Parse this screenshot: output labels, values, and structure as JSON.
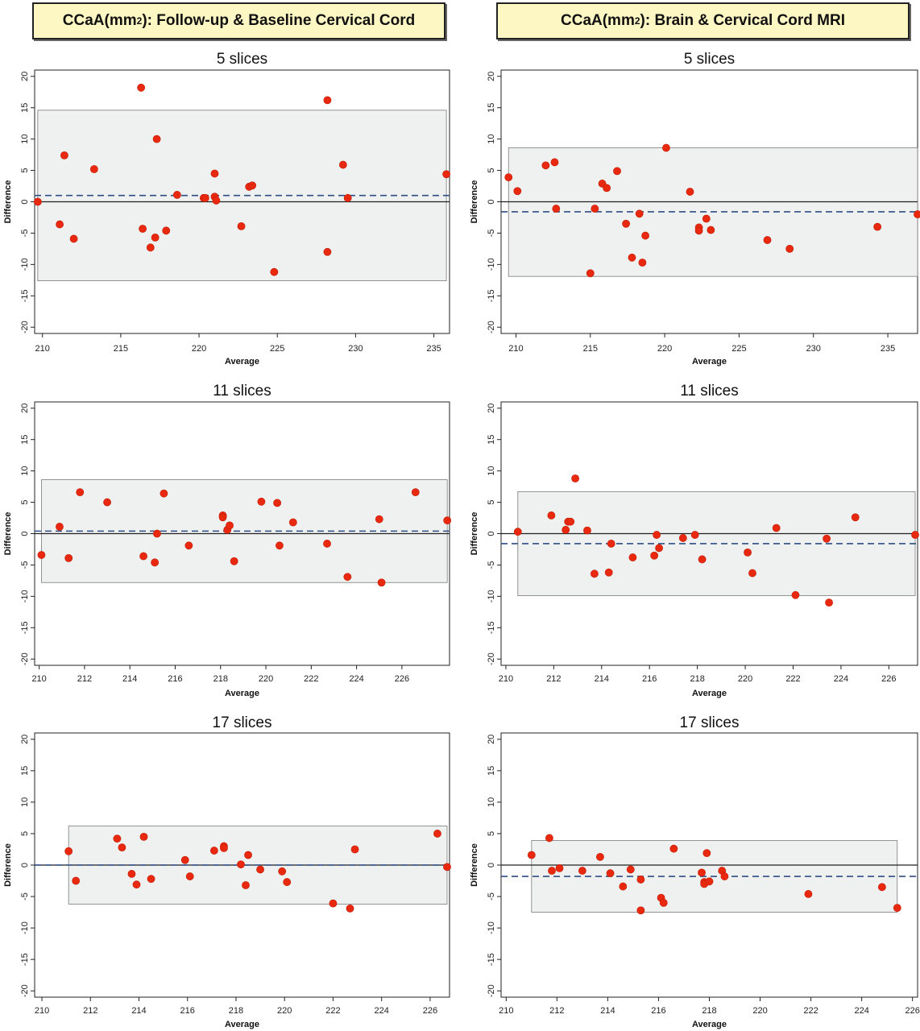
{
  "headers": {
    "left": {
      "prefix": "CCaA(mm",
      "sup": "2",
      "suffix": "): Follow-up & Baseline Cervical Cord"
    },
    "right": {
      "prefix": "CCaA(mm",
      "sup": "2",
      "suffix": "): Brain & Cervical Cord MRI"
    }
  },
  "chart_data": [
    {
      "type": "scatter",
      "title": "5 slices",
      "xlabel": "Average",
      "ylabel": "Difference",
      "xlim": [
        209.5,
        236
      ],
      "ylim": [
        -21,
        21
      ],
      "xticks": [
        210,
        215,
        220,
        225,
        230,
        235
      ],
      "yticks": [
        20,
        15,
        10,
        5,
        0,
        -5,
        -10,
        -15,
        -20
      ],
      "mean_difference": 1.0,
      "limits_of_agreement": [
        -12.6,
        14.6
      ],
      "grid": false,
      "marker_color": "#e8290f",
      "band_color": "#eef1f0",
      "mean_line_color": "#2e4d84",
      "points": [
        [
          209.7,
          0.0
        ],
        [
          211.1,
          -3.6
        ],
        [
          211.4,
          7.4
        ],
        [
          212.0,
          -5.9
        ],
        [
          213.3,
          5.2
        ],
        [
          216.3,
          18.2
        ],
        [
          216.4,
          -4.3
        ],
        [
          216.9,
          -7.3
        ],
        [
          217.2,
          -5.7
        ],
        [
          217.3,
          10.0
        ],
        [
          217.9,
          -4.6
        ],
        [
          218.6,
          1.1
        ],
        [
          220.3,
          0.6
        ],
        [
          220.4,
          0.6
        ],
        [
          221.0,
          4.5
        ],
        [
          221.0,
          0.8
        ],
        [
          221.1,
          0.2
        ],
        [
          222.7,
          -3.9
        ],
        [
          223.2,
          2.4
        ],
        [
          223.4,
          2.6
        ],
        [
          224.8,
          -11.2
        ],
        [
          228.2,
          16.2
        ],
        [
          228.2,
          -8.0
        ],
        [
          229.2,
          5.9
        ],
        [
          229.5,
          0.6
        ],
        [
          235.8,
          4.4
        ]
      ]
    },
    {
      "type": "scatter",
      "title": "5 slices",
      "xlabel": "Average",
      "ylabel": "Difference",
      "xlim": [
        209,
        237
      ],
      "ylim": [
        -21,
        21
      ],
      "xticks": [
        210,
        215,
        220,
        225,
        230,
        235
      ],
      "yticks": [
        20,
        15,
        10,
        5,
        0,
        -5,
        -10,
        -15,
        -20
      ],
      "mean_difference": -1.6,
      "limits_of_agreement": [
        -11.9,
        8.6
      ],
      "grid": false,
      "marker_color": "#e8290f",
      "band_color": "#eef1f0",
      "mean_line_color": "#2e4d84",
      "points": [
        [
          209.5,
          3.9
        ],
        [
          210.1,
          1.7
        ],
        [
          212.0,
          5.8
        ],
        [
          212.6,
          6.3
        ],
        [
          212.7,
          -1.1
        ],
        [
          215.0,
          -11.4
        ],
        [
          215.3,
          -1.1
        ],
        [
          215.8,
          2.9
        ],
        [
          216.1,
          2.2
        ],
        [
          216.8,
          4.9
        ],
        [
          217.4,
          -3.5
        ],
        [
          217.8,
          -8.9
        ],
        [
          218.3,
          -1.9
        ],
        [
          218.5,
          -9.7
        ],
        [
          218.7,
          -5.4
        ],
        [
          220.1,
          8.6
        ],
        [
          221.7,
          1.6
        ],
        [
          222.3,
          -4.1
        ],
        [
          222.3,
          -4.6
        ],
        [
          222.8,
          -2.7
        ],
        [
          223.1,
          -4.5
        ],
        [
          226.9,
          -6.1
        ],
        [
          228.4,
          -7.5
        ],
        [
          234.3,
          -4.0
        ],
        [
          237.0,
          -2.0
        ]
      ]
    },
    {
      "type": "scatter",
      "title": "11 slices",
      "xlabel": "Average",
      "ylabel": "Difference",
      "xlim": [
        209.8,
        228.1
      ],
      "ylim": [
        -21,
        21
      ],
      "xticks": [
        210,
        212,
        214,
        216,
        218,
        220,
        222,
        224,
        226
      ],
      "yticks": [
        20,
        15,
        10,
        5,
        0,
        -5,
        -10,
        -15,
        -20
      ],
      "mean_difference": 0.4,
      "limits_of_agreement": [
        -7.8,
        8.6
      ],
      "grid": false,
      "marker_color": "#e8290f",
      "band_color": "#eef1f0",
      "mean_line_color": "#2e4d84",
      "points": [
        [
          210.1,
          -3.4
        ],
        [
          210.9,
          1.1
        ],
        [
          211.3,
          -3.9
        ],
        [
          211.8,
          6.6
        ],
        [
          213.0,
          5.0
        ],
        [
          214.6,
          -3.6
        ],
        [
          215.1,
          -4.6
        ],
        [
          215.2,
          0.0
        ],
        [
          215.5,
          6.4
        ],
        [
          216.6,
          -1.9
        ],
        [
          218.1,
          2.9
        ],
        [
          218.1,
          2.6
        ],
        [
          218.3,
          0.6
        ],
        [
          218.4,
          1.3
        ],
        [
          218.6,
          -4.4
        ],
        [
          219.8,
          5.1
        ],
        [
          220.5,
          4.9
        ],
        [
          220.6,
          -1.9
        ],
        [
          221.2,
          1.8
        ],
        [
          222.7,
          -1.6
        ],
        [
          223.6,
          -6.9
        ],
        [
          225.0,
          2.3
        ],
        [
          225.1,
          -7.8
        ],
        [
          226.6,
          6.6
        ],
        [
          228.0,
          2.1
        ]
      ]
    },
    {
      "type": "scatter",
      "title": "11 slices",
      "xlabel": "Average",
      "ylabel": "Difference",
      "xlim": [
        209.8,
        227.2
      ],
      "ylim": [
        -21,
        21
      ],
      "xticks": [
        210,
        212,
        214,
        216,
        218,
        220,
        222,
        224,
        226
      ],
      "yticks": [
        20,
        15,
        10,
        5,
        0,
        -5,
        -10,
        -15,
        -20
      ],
      "mean_difference": -1.6,
      "limits_of_agreement": [
        -9.9,
        6.7
      ],
      "grid": false,
      "marker_color": "#e8290f",
      "band_color": "#eef1f0",
      "mean_line_color": "#2e4d84",
      "points": [
        [
          210.5,
          0.3
        ],
        [
          211.9,
          2.9
        ],
        [
          212.5,
          0.6
        ],
        [
          212.6,
          1.9
        ],
        [
          212.7,
          1.9
        ],
        [
          212.9,
          8.8
        ],
        [
          213.4,
          0.5
        ],
        [
          213.7,
          -6.4
        ],
        [
          214.3,
          -6.2
        ],
        [
          214.4,
          -1.6
        ],
        [
          215.3,
          -3.8
        ],
        [
          216.2,
          -3.5
        ],
        [
          216.3,
          -0.2
        ],
        [
          216.4,
          -2.3
        ],
        [
          217.4,
          -0.7
        ],
        [
          217.9,
          -0.2
        ],
        [
          218.2,
          -4.1
        ],
        [
          220.1,
          -3.0
        ],
        [
          220.3,
          -6.3
        ],
        [
          221.3,
          0.9
        ],
        [
          222.1,
          -9.8
        ],
        [
          223.4,
          -0.8
        ],
        [
          223.5,
          -11.0
        ],
        [
          224.6,
          2.6
        ],
        [
          227.1,
          -0.2
        ]
      ]
    },
    {
      "type": "scatter",
      "title": "17 slices",
      "xlabel": "Average",
      "ylabel": "Difference",
      "xlim": [
        209.7,
        226.8
      ],
      "ylim": [
        -21,
        21
      ],
      "xticks": [
        210,
        212,
        214,
        216,
        218,
        220,
        222,
        224,
        226
      ],
      "yticks": [
        20,
        15,
        10,
        5,
        0,
        -5,
        -10,
        -15,
        -20
      ],
      "mean_difference": 0.0,
      "limits_of_agreement": [
        -6.2,
        6.2
      ],
      "grid": false,
      "marker_color": "#e8290f",
      "band_color": "#eef1f0",
      "mean_line_color": "#2e4d84",
      "points": [
        [
          211.1,
          2.2
        ],
        [
          211.4,
          -2.5
        ],
        [
          213.1,
          4.2
        ],
        [
          213.3,
          2.8
        ],
        [
          213.7,
          -1.4
        ],
        [
          213.9,
          -3.1
        ],
        [
          214.2,
          4.5
        ],
        [
          214.5,
          -2.2
        ],
        [
          215.9,
          0.8
        ],
        [
          216.1,
          -1.8
        ],
        [
          217.1,
          2.3
        ],
        [
          217.5,
          3.0
        ],
        [
          217.5,
          2.7
        ],
        [
          218.2,
          0.1
        ],
        [
          218.4,
          -3.2
        ],
        [
          218.5,
          1.6
        ],
        [
          219.0,
          -0.7
        ],
        [
          219.9,
          -1.0
        ],
        [
          220.1,
          -2.7
        ],
        [
          222.0,
          -6.1
        ],
        [
          222.7,
          -6.9
        ],
        [
          222.9,
          2.5
        ],
        [
          226.3,
          5.0
        ],
        [
          226.7,
          -0.3
        ]
      ]
    },
    {
      "type": "scatter",
      "title": "17 slices",
      "xlabel": "Average",
      "ylabel": "Difference",
      "xlim": [
        209.8,
        226.2
      ],
      "ylim": [
        -21,
        21
      ],
      "xticks": [
        210,
        212,
        214,
        216,
        218,
        220,
        222,
        224,
        226
      ],
      "yticks": [
        20,
        15,
        10,
        5,
        0,
        -5,
        -10,
        -15,
        -20
      ],
      "mean_difference": -1.8,
      "limits_of_agreement": [
        -7.5,
        3.9
      ],
      "grid": false,
      "marker_color": "#e8290f",
      "band_color": "#eef1f0",
      "mean_line_color": "#2e4d84",
      "points": [
        [
          211.0,
          1.6
        ],
        [
          211.7,
          4.3
        ],
        [
          211.8,
          -0.9
        ],
        [
          212.1,
          -0.5
        ],
        [
          213.0,
          -0.9
        ],
        [
          213.7,
          1.3
        ],
        [
          214.1,
          -1.3
        ],
        [
          214.6,
          -3.4
        ],
        [
          214.9,
          -0.7
        ],
        [
          215.3,
          -2.3
        ],
        [
          215.3,
          -7.2
        ],
        [
          216.1,
          -5.2
        ],
        [
          216.2,
          -6.0
        ],
        [
          216.6,
          2.6
        ],
        [
          217.7,
          -1.2
        ],
        [
          217.8,
          -2.7
        ],
        [
          217.8,
          -3.0
        ],
        [
          217.9,
          1.9
        ],
        [
          218.0,
          -2.6
        ],
        [
          218.5,
          -0.9
        ],
        [
          218.6,
          -1.8
        ],
        [
          221.9,
          -4.6
        ],
        [
          224.8,
          -3.5
        ],
        [
          225.4,
          -6.8
        ]
      ]
    }
  ]
}
